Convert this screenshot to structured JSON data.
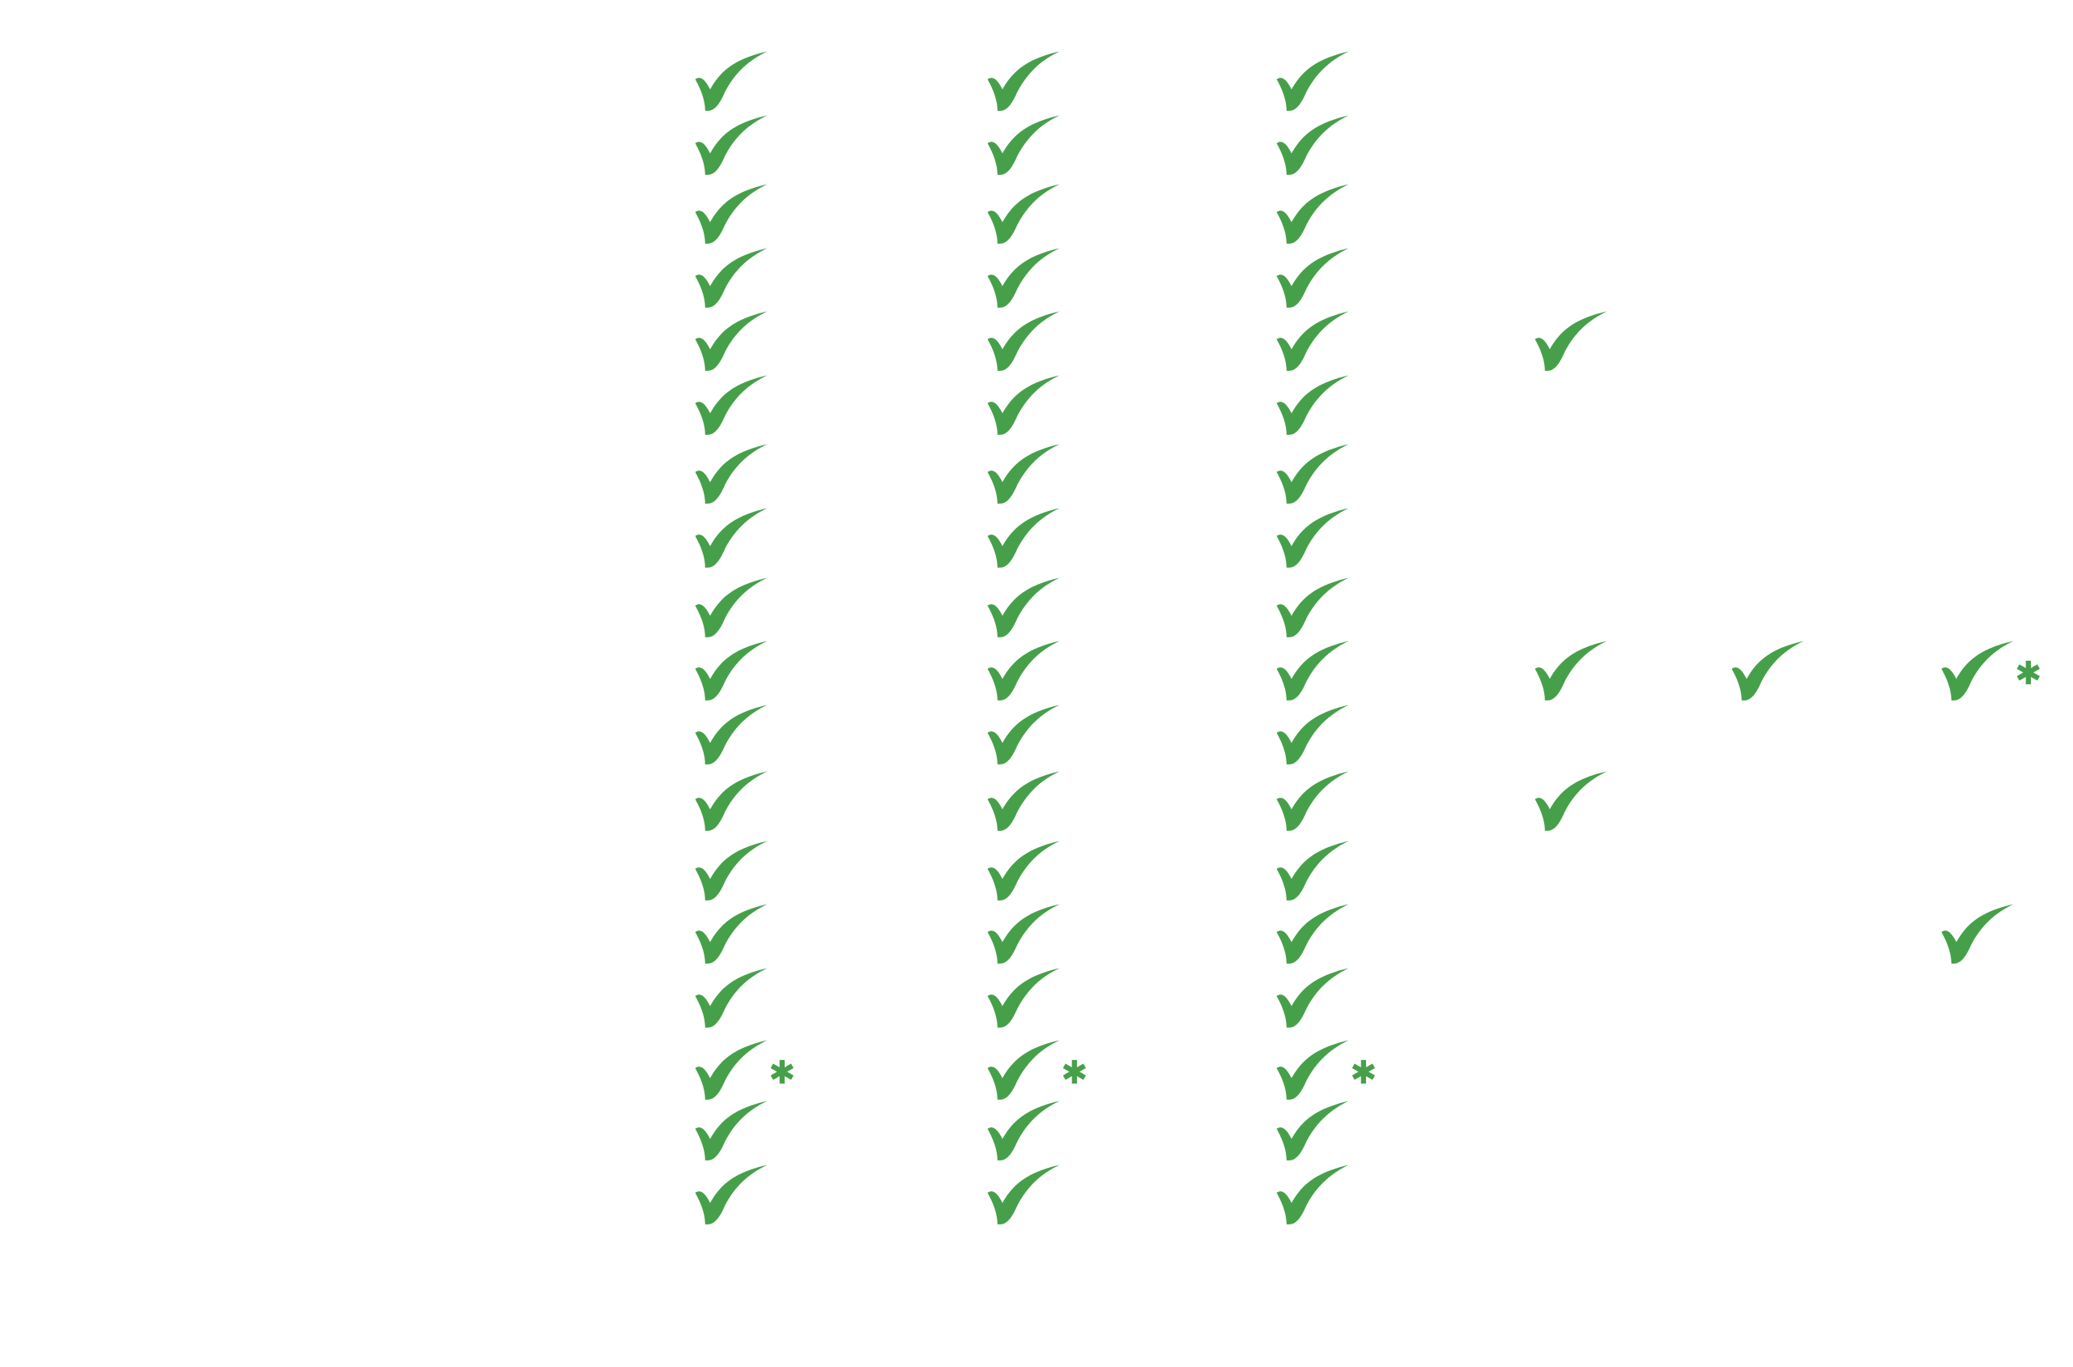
{
  "colors": {
    "check": "#46a04a",
    "asterisk": "#46a04a",
    "background": "#ffffff"
  },
  "icon": "checkmark-icon",
  "asterisk_symbol": "✱",
  "grid": {
    "rows": 18,
    "columns": [
      {
        "cells": [
          "check",
          "check",
          "check",
          "check",
          "check",
          "check",
          "check",
          "check",
          "check",
          "check",
          "check",
          "check",
          "check",
          "check",
          "check",
          "check-asterisk",
          "check",
          "check"
        ]
      },
      {
        "cells": [
          "check",
          "check",
          "check",
          "check",
          "check",
          "check",
          "check",
          "check",
          "check",
          "check",
          "check",
          "check",
          "check",
          "check",
          "check",
          "check-asterisk",
          "check",
          "check"
        ]
      },
      {
        "cells": [
          "check",
          "check",
          "check",
          "check",
          "check",
          "check",
          "check",
          "check",
          "check",
          "check",
          "check",
          "check",
          "check",
          "check",
          "check",
          "check-asterisk",
          "check",
          "check"
        ]
      },
      {
        "cells": [
          "",
          "",
          "",
          "",
          "check",
          "",
          "",
          "",
          "",
          "check",
          "",
          "check",
          "",
          "",
          "",
          "",
          "",
          ""
        ]
      },
      {
        "cells": [
          "",
          "",
          "",
          "",
          "",
          "",
          "",
          "",
          "",
          "check",
          "",
          "",
          "",
          "",
          "",
          "",
          "",
          ""
        ]
      },
      {
        "cells": [
          "",
          "",
          "",
          "",
          "",
          "",
          "",
          "",
          "",
          "check-asterisk",
          "",
          "",
          "",
          "check",
          "",
          "",
          "",
          ""
        ]
      }
    ]
  }
}
